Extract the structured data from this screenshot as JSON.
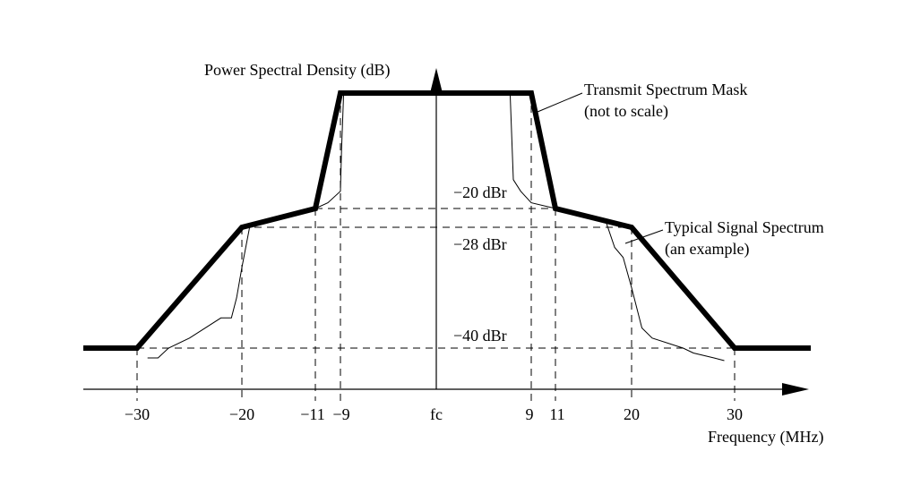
{
  "chart_data": {
    "type": "line",
    "title": "",
    "ylabel": "Power Spectral Density (dB)",
    "xlabel": "Frequency (MHz)",
    "xlim": [
      -38,
      38
    ],
    "ylim": [
      -50,
      5
    ],
    "x_ticks": [
      -30,
      -20,
      -11,
      -9,
      0,
      9,
      11,
      20,
      30
    ],
    "x_tick_labels": [
      "−30",
      "−20",
      "−11",
      "−9",
      "fc",
      "9",
      "11",
      "20",
      "30"
    ],
    "y_levels": [
      {
        "value": -20,
        "label": "−20 dBr"
      },
      {
        "value": -28,
        "label": "−28 dBr"
      },
      {
        "value": -40,
        "label": "−40 dBr"
      }
    ],
    "series": [
      {
        "name": "Transmit Spectrum Mask",
        "note": "(not to scale)",
        "x": [
          -35,
          -30,
          -20,
          -11,
          -9,
          9,
          11,
          20,
          30,
          35
        ],
        "y": [
          -40,
          -40,
          -28,
          -20,
          0,
          0,
          -20,
          -28,
          -40,
          -40
        ]
      },
      {
        "name": "Typical Signal Spectrum",
        "note": "(an example)",
        "x": [
          -29,
          -28,
          -27,
          -25,
          -22,
          -21,
          -20.5,
          -20,
          -19,
          -17,
          -15,
          -13,
          -11,
          -10,
          -9,
          -8.9,
          -8.7,
          7,
          7.3,
          8,
          9,
          11,
          14,
          16,
          17,
          18,
          19,
          20,
          21,
          22,
          25,
          26,
          28,
          29
        ],
        "y": [
          -42,
          -42,
          -40,
          -39,
          -37,
          -37,
          -35,
          -32,
          -27,
          -25,
          -23,
          -21,
          -20,
          -19,
          -17,
          -10,
          0,
          0,
          -15,
          -17,
          -19,
          -20,
          -22,
          -24,
          -26,
          -30,
          -31,
          -34,
          -38,
          -39,
          -40,
          -41,
          -42,
          -43
        ]
      }
    ]
  }
}
